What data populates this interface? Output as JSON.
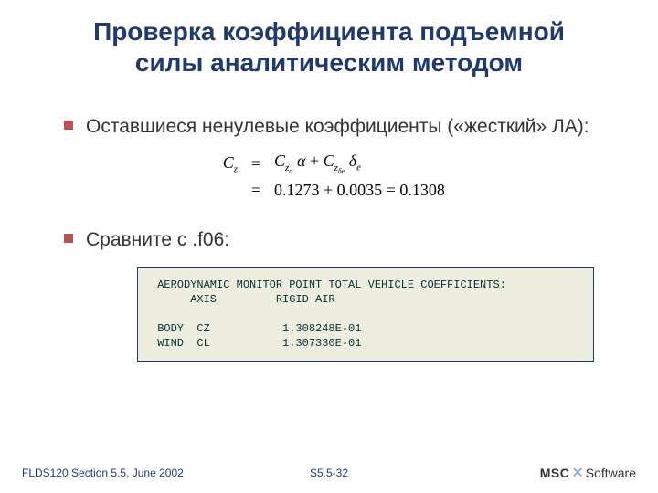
{
  "title": {
    "line1": "Проверка коэффициента подъемной",
    "line2": "силы аналитическим методом"
  },
  "bullets": [
    {
      "text": "Оставшиеся ненулевые коэффициенты («жесткий» ЛА):"
    },
    {
      "text": "Сравните с .f06:"
    }
  ],
  "equation": {
    "lhs": "C",
    "lhs_sub": "z",
    "term1_base": "C",
    "term1_sub": "z",
    "term1_subsub": "α",
    "term1_var": "α",
    "plus": " + ",
    "term2_base": "C",
    "term2_sub": "z",
    "term2_subsub": "δe",
    "term2_var": "δ",
    "term2_var_sub": "e",
    "line2_lhs": "",
    "line2_val1": "0.1273",
    "line2_plus": " + ",
    "line2_val2": "0.0035",
    "line2_eq": " = ",
    "line2_result": "0.1308"
  },
  "codebox": {
    "line1": " AERODYNAMIC MONITOR POINT TOTAL VEHICLE COEFFICIENTS:",
    "line2": "      AXIS         RIGID AIR",
    "line3": "",
    "line4": " BODY  CZ           1.308248E-01",
    "line5": " WIND  CL           1.307330E-01"
  },
  "footer": {
    "left": "FLDS120 Section 5.5, June 2002",
    "center": "S5.5-32",
    "logo1": "MSC",
    "logo2": "Software"
  },
  "colors": {
    "title_color": "#1f3a6e",
    "bullet_color": "#c05050",
    "codebox_bg": "#eeeee0",
    "codebox_border": "#1f3a6e",
    "footer_color": "#1f3a6e"
  }
}
